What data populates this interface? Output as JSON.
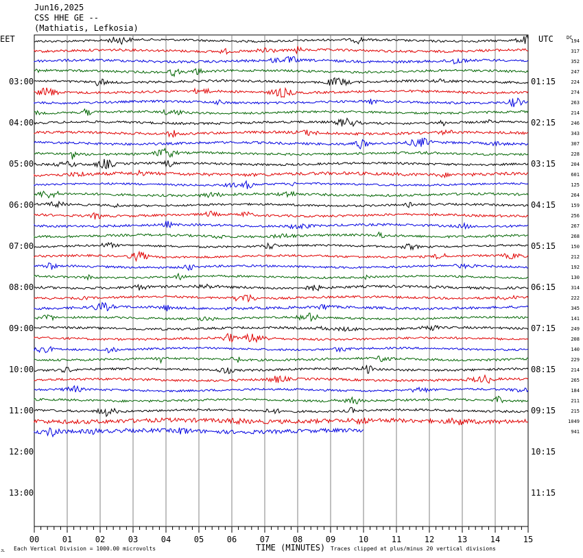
{
  "header": {
    "date": "Jun16,2025",
    "station": "CSS HHE GE --",
    "location": "(Mathiatis, Lefkosia)"
  },
  "left_timezone": "EET",
  "right_timezone": "UTC",
  "dc_label": "DC",
  "colors": {
    "black": "#000000",
    "red": "#e00000",
    "blue": "#0000e0",
    "green": "#006400",
    "grid": "#808080"
  },
  "chart_data": {
    "type": "line",
    "subtype": "seismogram-helicorder",
    "x_axis": {
      "label": "TIME (MINUTES)",
      "range": [
        0,
        15
      ],
      "tick_labels": [
        "00",
        "01",
        "02",
        "03",
        "04",
        "05",
        "06",
        "07",
        "08",
        "09",
        "10",
        "11",
        "12",
        "13",
        "14",
        "15"
      ]
    },
    "left_hour_labels": [
      "03:00",
      "04:00",
      "05:00",
      "06:00",
      "07:00",
      "08:00",
      "09:00",
      "10:00",
      "11:00",
      "12:00",
      "13:00"
    ],
    "right_hour_labels": [
      "01:15",
      "02:15",
      "03:15",
      "04:15",
      "05:15",
      "06:15",
      "07:15",
      "08:15",
      "09:15",
      "10:15",
      "11:15"
    ],
    "trace_color_cycle": [
      "black",
      "red",
      "blue",
      "green"
    ],
    "dc_offsets": [
      194,
      317,
      352,
      247,
      224,
      274,
      263,
      214,
      246,
      343,
      307,
      228,
      204,
      601,
      125,
      264,
      159,
      256,
      267,
      268,
      150,
      212,
      192,
      130,
      314,
      222,
      345,
      141,
      249,
      208,
      140,
      229,
      214,
      265,
      184,
      211,
      215,
      1049,
      941
    ],
    "last_trace_end_minute": 10,
    "footer_left": "Each Vertical Division = 1000.00 microvolts",
    "footer_right": "Traces clipped at plus/minus 20 vertical divisions",
    "corner_mark": "JL"
  }
}
